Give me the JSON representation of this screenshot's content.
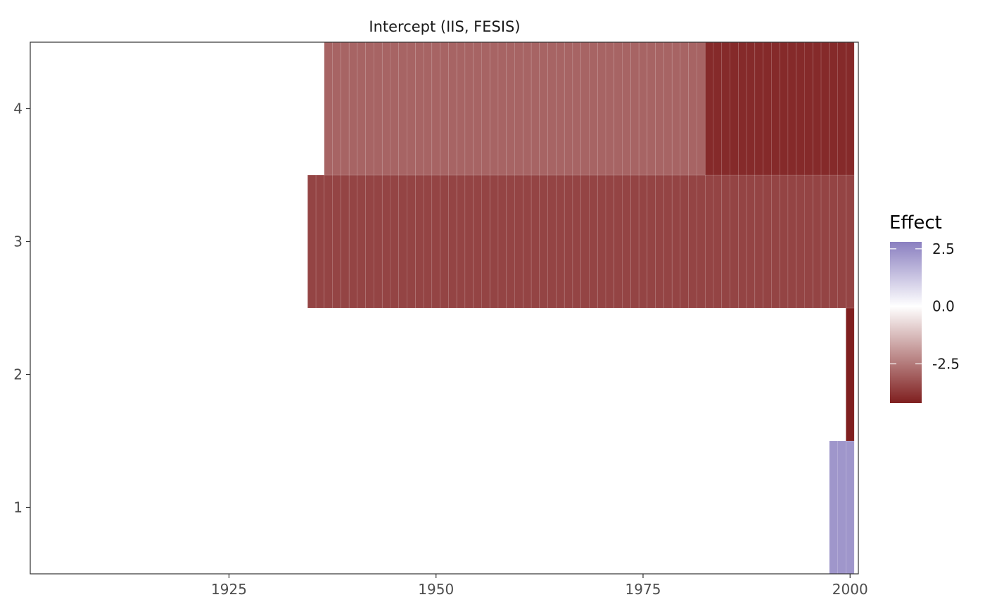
{
  "chart_data": {
    "type": "heatmap",
    "title": "Intercept (IIS, FESIS)",
    "xlabel": "",
    "ylabel": "",
    "xlim": [
      1901,
      2001
    ],
    "ylim": [
      0.5,
      4.5
    ],
    "x_ticks": [
      1925,
      1950,
      1975,
      2000
    ],
    "x_tick_labels": [
      "1925",
      "1950",
      "1975",
      "2000"
    ],
    "y_ticks": [
      1,
      2,
      3,
      4
    ],
    "y_tick_labels": [
      "1",
      "2",
      "3",
      "4"
    ],
    "legend": {
      "title": "Effect",
      "position": "right",
      "min": -4.2,
      "max": 2.8,
      "ticks": [
        2.5,
        0.0,
        -2.5
      ],
      "tick_labels": [
        "2.5",
        "0.0",
        "-2.5"
      ],
      "low_color": "#7f1f1f",
      "mid_color": "#ffffff",
      "high_color": "#8a7fc0"
    },
    "segments": [
      {
        "row": 1,
        "start": 1998,
        "end": 2000,
        "value": 2.3
      },
      {
        "row": 2,
        "start": 2000,
        "end": 2000,
        "value": -4.2
      },
      {
        "row": 3,
        "start": 1935,
        "end": 2000,
        "value": -3.5
      },
      {
        "row": 4,
        "start": 1937,
        "end": 1982,
        "value": -2.9
      },
      {
        "row": 4,
        "start": 1983,
        "end": 2000,
        "value": -4.0
      }
    ]
  }
}
